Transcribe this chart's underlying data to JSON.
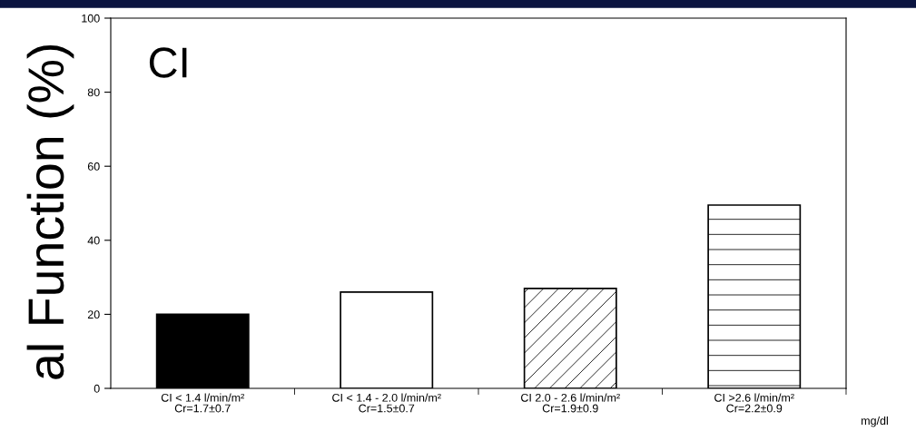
{
  "chart_data": {
    "type": "bar",
    "ylabel": "al Function (%)",
    "categories": [
      "CI < 1.4 l/min/m²\nCr=1.7±0.7",
      "CI < 1.4 - 2.0 l/min/m²\nCr=1.5±0.7",
      "CI 2.0 - 2.6 l/min/m²\nCr=1.9±0.9",
      "CI >2.6 l/min/m²\nCr=2.2±0.9"
    ],
    "values": [
      20,
      26,
      27,
      49.5
    ],
    "colors": [
      "#000000",
      "#ffffff",
      "#ffffff",
      "#ffffff"
    ],
    "ylim": [
      0,
      100
    ],
    "yticks": [
      0,
      20,
      40,
      60,
      80,
      100
    ],
    "annotations": [
      "CI",
      "mg/dl"
    ],
    "grid": false
  }
}
